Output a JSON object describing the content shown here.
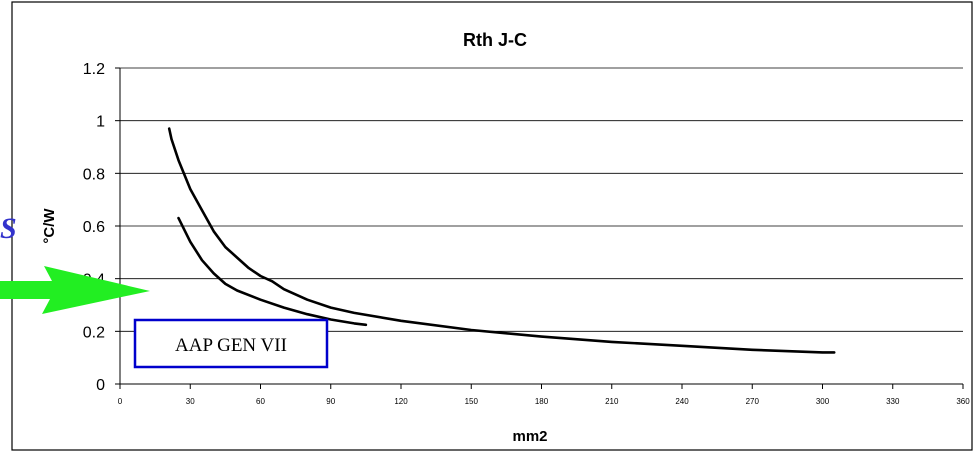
{
  "chart_data": {
    "type": "line",
    "title": "Rth J-C",
    "xlabel": "mm2",
    "ylabel": "°C/W",
    "xlim": [
      0,
      360
    ],
    "ylim": [
      0,
      1.2
    ],
    "x_ticks": [
      0,
      30,
      60,
      90,
      120,
      150,
      180,
      210,
      240,
      270,
      300,
      330,
      360
    ],
    "y_ticks": [
      0,
      0.2,
      0.4,
      0.6,
      0.8,
      1,
      1.2
    ],
    "y_tick_labels": [
      "0",
      "0.2",
      "0.4",
      "0.6",
      "0.8",
      "1",
      "1.2"
    ],
    "grid": "horizontal",
    "series": [
      {
        "color": "#000000",
        "x": [
          21,
          22,
          25,
          30,
          35,
          40,
          45,
          50,
          55,
          60,
          65,
          70,
          80,
          90,
          100,
          120,
          150,
          180,
          210,
          240,
          270,
          300,
          305
        ],
        "y": [
          0.97,
          0.93,
          0.85,
          0.74,
          0.66,
          0.58,
          0.52,
          0.48,
          0.44,
          0.41,
          0.39,
          0.36,
          0.32,
          0.29,
          0.27,
          0.24,
          0.205,
          0.18,
          0.16,
          0.145,
          0.13,
          0.12,
          0.12
        ]
      },
      {
        "color": "#000000",
        "x": [
          25,
          30,
          35,
          40,
          45,
          50,
          60,
          70,
          80,
          90,
          100,
          105
        ],
        "y": [
          0.63,
          0.54,
          0.47,
          0.42,
          0.38,
          0.355,
          0.32,
          0.29,
          0.265,
          0.245,
          0.23,
          0.225
        ]
      }
    ]
  },
  "annotation": {
    "label": "AAP GEN VII",
    "border_color": "#0000cc"
  },
  "arrow": {
    "color": "#22ee22"
  },
  "edge_glyph": {
    "text": "S",
    "color": "#3333cc"
  }
}
